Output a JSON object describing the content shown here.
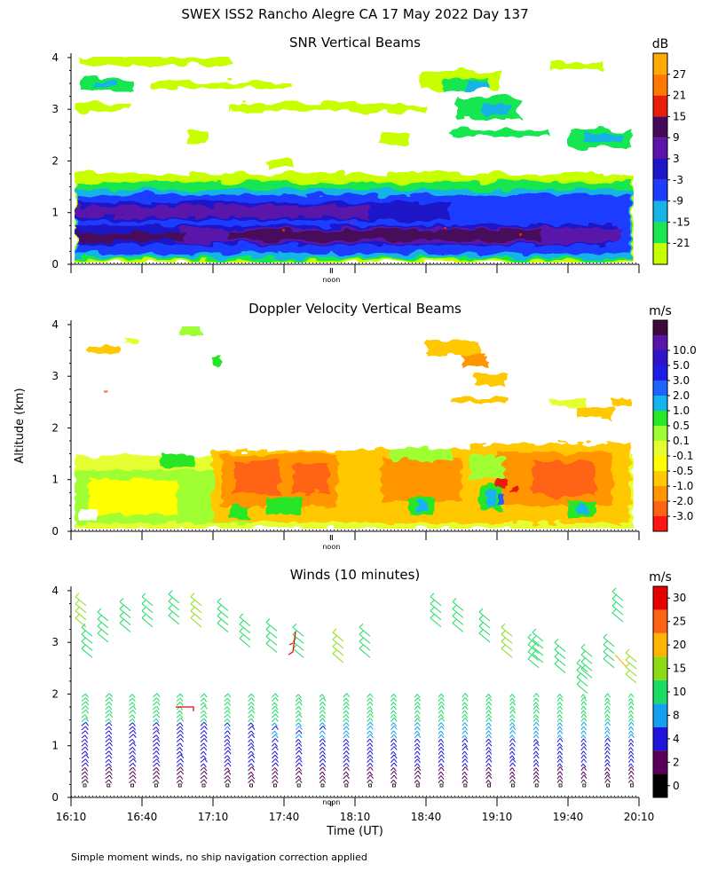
{
  "title": "SWEX ISS2 Rancho Alegre CA  17 May 2022 Day 137",
  "ylabel": "Altitude (km)",
  "xlabel": "Time (UT)",
  "footnote": "Simple moment winds, no ship navigation correction applied",
  "noon_label": "noon",
  "x_ticks": [
    "16:10",
    "16:40",
    "17:10",
    "17:40",
    "18:10",
    "18:40",
    "19:10",
    "19:40",
    "20:10"
  ],
  "y_ticks": [
    "0",
    "1",
    "2",
    "3",
    "4"
  ],
  "colors": {
    "scale_snr": [
      "#c8ff00",
      "#19e650",
      "#14b4e6",
      "#1e3cff",
      "#1e14c8",
      "#5a14aa",
      "#460a5a",
      "#e61e0a",
      "#ff7800",
      "#ffaa00"
    ],
    "scale_vel": [
      "#ff1414",
      "#ff6414",
      "#ff9600",
      "#ffc800",
      "#ffff00",
      "#e6ff32",
      "#a0ff32",
      "#28e628",
      "#14b4f0",
      "#1e64ff",
      "#1e1ee6",
      "#3214c8",
      "#5a14aa",
      "#3c0a3c"
    ],
    "scale_wind": [
      "#000000",
      "#5a005a",
      "#1e14dc",
      "#14a0f0",
      "#19dc64",
      "#8cdc14",
      "#ffb400",
      "#ff6414",
      "#e60000"
    ]
  },
  "chart_data": [
    {
      "type": "heatmap",
      "title": "SNR Vertical Beams",
      "units": "dB",
      "colorbar_labels": [
        "-21",
        "-15",
        "-9",
        "-3",
        "3",
        "9",
        "15",
        "21",
        "27"
      ],
      "x_range": [
        "16:10",
        "20:10"
      ],
      "ylim": [
        0,
        4
      ]
    },
    {
      "type": "heatmap",
      "title": "Doppler Velocity Vertical Beams",
      "units": "m/s",
      "colorbar_labels": [
        "-3.0",
        "-2.0",
        "-1.0",
        "-0.5",
        "-0.1",
        "0.1",
        "0.5",
        "1.0",
        "2.0",
        "3.0",
        "5.0",
        "10.0"
      ],
      "x_range": [
        "16:10",
        "20:10"
      ],
      "ylim": [
        0,
        4
      ]
    },
    {
      "type": "scatter",
      "title": "Winds (10 minutes)",
      "units": "m/s",
      "colorbar_labels": [
        "0",
        "2",
        "4",
        "8",
        "10",
        "15",
        "20",
        "25",
        "30"
      ],
      "x_range": [
        "16:10",
        "20:10"
      ],
      "ylim": [
        0,
        4
      ]
    }
  ]
}
